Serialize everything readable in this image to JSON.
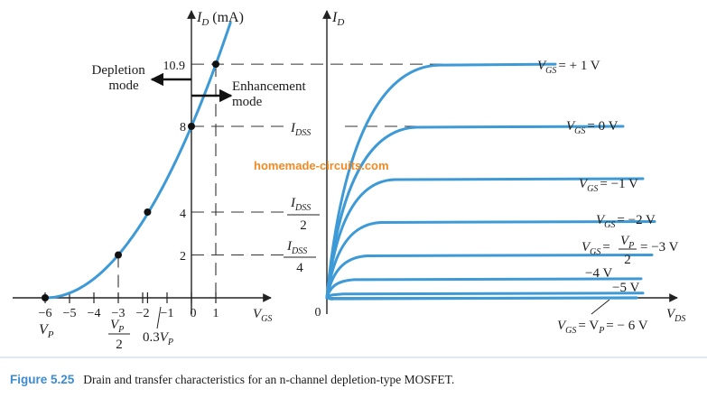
{
  "chart_data": [
    {
      "type": "line",
      "name": "transfer-characteristic",
      "y_axis_label": "I",
      "y_axis_sub": "D",
      "y_axis_unit": "(mA)",
      "x_axis_label": "V",
      "x_axis_sub": "GS",
      "x_ticks": [
        "−6",
        "−5",
        "−4",
        "−3",
        "−2",
        "−1",
        "0",
        "1"
      ],
      "xlim": [
        -6.5,
        3
      ],
      "ylim": [
        0,
        13
      ],
      "series": [
        {
          "name": "",
          "x": [
            -6,
            -5,
            -4,
            -3,
            -2,
            -1,
            0,
            1,
            1.5
          ],
          "y": [
            0,
            0.22,
            0.89,
            2,
            3.56,
            5.56,
            8,
            10.9,
            12.5
          ]
        }
      ],
      "points": [
        {
          "x": -6,
          "y": 0
        },
        {
          "x": -3,
          "y": 2
        },
        {
          "x": -1.8,
          "y": 4
        },
        {
          "x": 0,
          "y": 8
        },
        {
          "x": 1,
          "y": 10.9
        }
      ],
      "y_value_labels": [
        "10.9",
        "8",
        "4",
        "2"
      ],
      "annotations": {
        "depletion": [
          "Depletion",
          "mode"
        ],
        "enhancement": [
          "Enhancement",
          "mode"
        ],
        "vp": {
          "main": "V",
          "sub": "P"
        },
        "vp_half": {
          "main": "V",
          "sub": "P",
          "den": "2"
        },
        "point3vp": {
          "prefix": "0.3",
          "main": "V",
          "sub": "P"
        }
      }
    },
    {
      "type": "line",
      "name": "drain-characteristic",
      "y_axis_label": "I",
      "y_axis_sub": "D",
      "x_axis_label": "V",
      "x_axis_sub": "DS",
      "origin_label": "0",
      "y_level_labels": {
        "idss": {
          "main": "I",
          "sub": "DSS"
        },
        "idss_half": {
          "main": "I",
          "sub": "DSS",
          "den": "2"
        },
        "idss_quarter": {
          "main": "I",
          "sub": "DSS",
          "den": "4"
        }
      },
      "series": [
        {
          "name": "VGS = +1 V",
          "label_main": "V",
          "label_sub": "GS",
          "label_rest": "= + 1 V",
          "sat_current": 10.9,
          "vsat": 5.0
        },
        {
          "name": "VGS = 0 V",
          "label_main": "V",
          "label_sub": "GS",
          "label_rest": "= 0 V",
          "sat_current": 8,
          "vsat": 4.0
        },
        {
          "name": "VGS = −1 V",
          "label_main": "V",
          "label_sub": "GS",
          "label_rest": "= −1 V",
          "sat_current": 5.56,
          "vsat": 3.0
        },
        {
          "name": "VGS = −2 V",
          "label_main": "V",
          "label_sub": "GS",
          "label_rest": "= −2  V",
          "sat_current": 3.56,
          "vsat": 2.4
        },
        {
          "name": "VGS = VP/2 = −3 V",
          "label_main": "V",
          "label_sub": "GS",
          "label_mid": "=",
          "label_frac_num_main": "V",
          "label_frac_num_sub": "P",
          "label_frac_den": "2",
          "label_rest": "= −3 V",
          "sat_current": 2,
          "vsat": 1.8
        },
        {
          "name": "−4 V",
          "label_rest": "−4 V",
          "sat_current": 0.89,
          "vsat": 1.2
        },
        {
          "name": "−5 V",
          "label_rest": "−5 V",
          "sat_current": 0.22,
          "vsat": 0.7
        },
        {
          "name": "VGS = VP = −6 V",
          "label_main": "V",
          "label_sub": "GS",
          "label_mid": "= V",
          "label_mid_sub": "P",
          "label_rest": "= − 6 V",
          "sat_current": 0,
          "vsat": 0.3
        }
      ]
    }
  ],
  "watermark": "homemade-circuits.com",
  "caption": {
    "figure_label": "Figure 5.25",
    "text": "Drain and transfer characteristics for an n-channel depletion-type MOSFET."
  },
  "colors": {
    "curve": "#3d9ad6",
    "axis": "#222222",
    "dashed": "#333333",
    "caption_label": "#3d8bd0",
    "watermark": "#f08a24"
  }
}
